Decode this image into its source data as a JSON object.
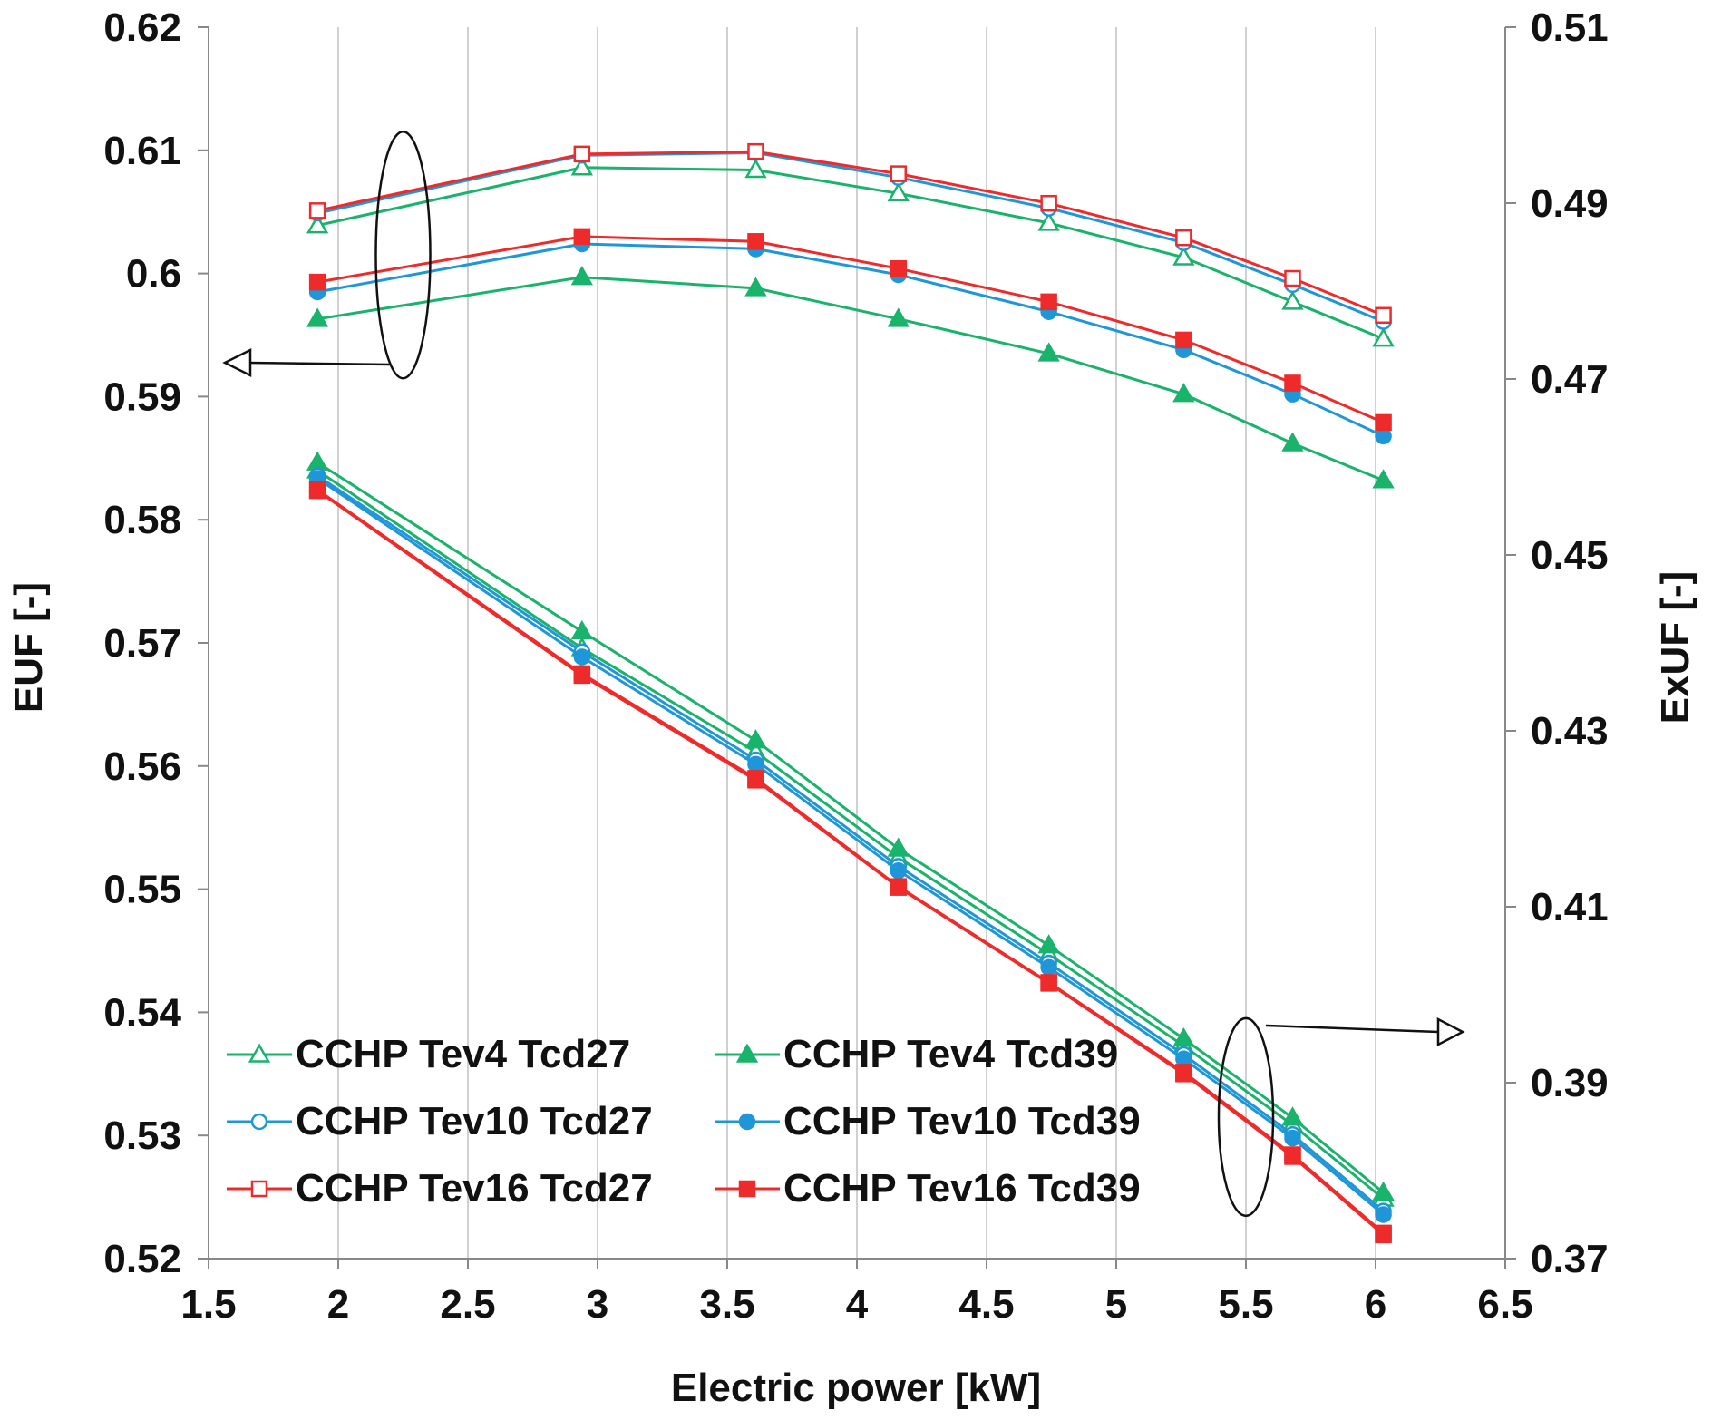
{
  "chart_data": {
    "type": "line",
    "title": "",
    "xlabel": "Electric power [kW]",
    "ylabel_left": "EUF [-]",
    "ylabel_right": "ExUF [-]",
    "xlim": [
      1.5,
      6.5
    ],
    "ylim_left": [
      0.52,
      0.62
    ],
    "ylim_right": [
      0.37,
      0.51
    ],
    "x_ticks": [
      "1.5",
      "2",
      "2.5",
      "3",
      "3.5",
      "4",
      "4.5",
      "5",
      "5.5",
      "6",
      "6.5"
    ],
    "y_left_ticks": [
      "0.52",
      "0.53",
      "0.54",
      "0.55",
      "0.56",
      "0.57",
      "0.58",
      "0.59",
      "0.6",
      "0.61",
      "0.62"
    ],
    "y_right_ticks": [
      "0.37",
      "0.39",
      "0.41",
      "0.43",
      "0.45",
      "0.47",
      "0.49",
      "0.51"
    ],
    "grid": "vertical",
    "legend_position": "bottom-left",
    "x": [
      1.92,
      2.94,
      3.61,
      4.16,
      4.74,
      5.26,
      5.68,
      6.03
    ],
    "series": [
      {
        "name": "CCHP Tev4 Tcd27",
        "axis": "left",
        "group": "EUF",
        "color": "#19b36b",
        "marker": "triangle",
        "filled": false,
        "values": [
          0.6039,
          0.6086,
          0.6084,
          0.6065,
          0.6041,
          0.6013,
          0.5977,
          0.5947
        ]
      },
      {
        "name": "CCHP Tev10 Tcd27",
        "axis": "left",
        "group": "EUF",
        "color": "#1e96d8",
        "marker": "circle",
        "filled": false,
        "values": [
          0.6049,
          0.6096,
          0.6098,
          0.6078,
          0.6053,
          0.6025,
          0.5991,
          0.5961
        ]
      },
      {
        "name": "CCHP Tev16 Tcd27",
        "axis": "left",
        "group": "EUF",
        "color": "#ee2b2b",
        "marker": "square",
        "filled": false,
        "values": [
          0.6051,
          0.6097,
          0.6099,
          0.6081,
          0.6057,
          0.6029,
          0.5996,
          0.5966
        ]
      },
      {
        "name": "CCHP Tev4 Tcd39",
        "axis": "left",
        "group": "EUF",
        "color": "#19b36b",
        "marker": "triangle",
        "filled": true,
        "values": [
          0.5963,
          0.5997,
          0.5988,
          0.5963,
          0.5935,
          0.5902,
          0.5862,
          0.5832
        ]
      },
      {
        "name": "CCHP Tev10 Tcd39",
        "axis": "left",
        "group": "EUF",
        "color": "#1e96d8",
        "marker": "circle",
        "filled": true,
        "values": [
          0.5985,
          0.6024,
          0.602,
          0.5999,
          0.5969,
          0.5938,
          0.5902,
          0.5868
        ]
      },
      {
        "name": "CCHP Tev16 Tcd39",
        "axis": "left",
        "group": "EUF",
        "color": "#ee2b2b",
        "marker": "square",
        "filled": true,
        "values": [
          0.5993,
          0.603,
          0.6026,
          0.6004,
          0.5977,
          0.5946,
          0.5911,
          0.5879
        ]
      },
      {
        "name": "CCHP Tev4 Tcd27",
        "axis": "right",
        "group": "ExUF",
        "color": "#19b36b",
        "marker": "triangle",
        "filled": false,
        "values": [
          0.4596,
          0.4394,
          0.4276,
          0.4156,
          0.4046,
          0.3942,
          0.3852,
          0.3768
        ]
      },
      {
        "name": "CCHP Tev4 Tcd39",
        "axis": "right",
        "group": "ExUF",
        "color": "#19b36b",
        "marker": "triangle",
        "filled": true,
        "values": [
          0.4605,
          0.4413,
          0.4289,
          0.4166,
          0.4056,
          0.395,
          0.386,
          0.3775
        ]
      },
      {
        "name": "CCHP Tev10 Tcd27",
        "axis": "right",
        "group": "ExUF",
        "color": "#1e96d8",
        "marker": "circle",
        "filled": false,
        "values": [
          0.459,
          0.439,
          0.4267,
          0.4146,
          0.4036,
          0.3932,
          0.3841,
          0.3754
        ]
      },
      {
        "name": "CCHP Tev10 Tcd39",
        "axis": "right",
        "group": "ExUF",
        "color": "#1e96d8",
        "marker": "circle",
        "filled": true,
        "values": [
          0.4587,
          0.4384,
          0.4262,
          0.4141,
          0.4031,
          0.3927,
          0.3837,
          0.375
        ]
      },
      {
        "name": "CCHP Tev16 Tcd27",
        "axis": "right",
        "group": "ExUF",
        "color": "#ee2b2b",
        "marker": "square",
        "filled": false,
        "values": [
          0.4574,
          0.4365,
          0.4246,
          0.4123,
          0.4014,
          0.3912,
          0.3818,
          0.3729
        ]
      },
      {
        "name": "CCHP Tev16 Tcd39",
        "axis": "right",
        "group": "ExUF",
        "color": "#ee2b2b",
        "marker": "square",
        "filled": true,
        "values": [
          0.4573,
          0.4363,
          0.4244,
          0.4122,
          0.4013,
          0.391,
          0.3816,
          0.3727
        ]
      }
    ],
    "legend": [
      "CCHP Tev4 Tcd27",
      "CCHP Tev4 Tcd39",
      "CCHP Tev10 Tcd27",
      "CCHP Tev10 Tcd39",
      "CCHP Tev16 Tcd27",
      "CCHP Tev16 Tcd39"
    ],
    "annotations": [
      {
        "type": "ellipse-with-arrow",
        "target": "EUF curves",
        "points_to": "left axis",
        "at_x": 2.25,
        "at_y_left": 0.6015
      },
      {
        "type": "ellipse-with-arrow",
        "target": "ExUF curves",
        "points_to": "right axis",
        "at_x": 5.5,
        "at_y_left": 0.5315
      }
    ]
  }
}
